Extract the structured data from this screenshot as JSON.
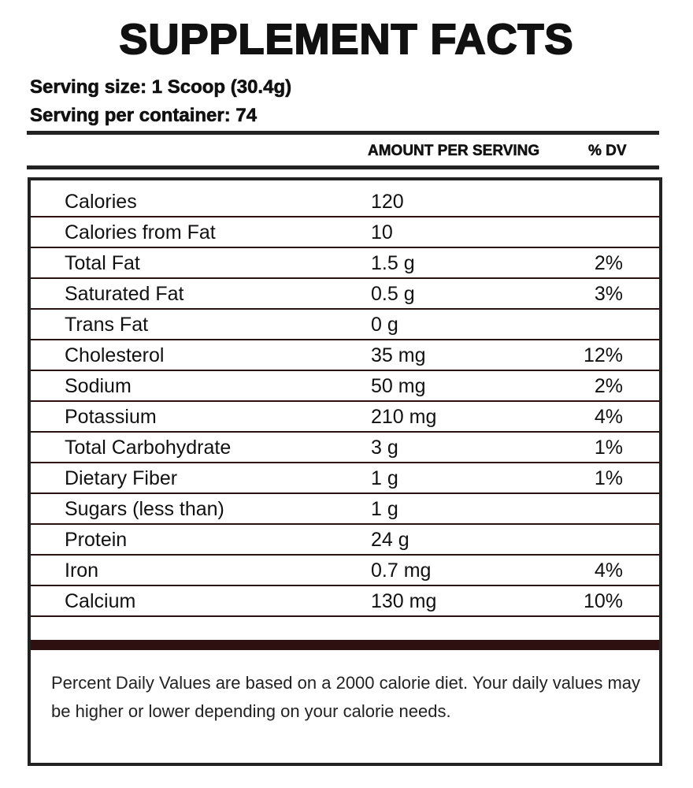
{
  "title": "SUPPLEMENT FACTS",
  "serving_size": "Serving size: 1 Scoop (30.4g)",
  "servings_per_container": "Serving per container: 74",
  "header": {
    "amount": "AMOUNT PER SERVING",
    "dv": "% DV"
  },
  "rows": [
    {
      "name": "Calories",
      "amount": "120",
      "dv": ""
    },
    {
      "name": "Calories from Fat",
      "amount": "10",
      "dv": ""
    },
    {
      "name": "Total Fat",
      "amount": "1.5 g",
      "dv": "2%"
    },
    {
      "name": "Saturated Fat",
      "amount": "0.5 g",
      "dv": "3%"
    },
    {
      "name": "Trans Fat",
      "amount": "0 g",
      "dv": ""
    },
    {
      "name": "Cholesterol",
      "amount": "35 mg",
      "dv": "12%"
    },
    {
      "name": "Sodium",
      "amount": "50 mg",
      "dv": "2%"
    },
    {
      "name": "Potassium",
      "amount": "210 mg",
      "dv": "4%"
    },
    {
      "name": "Total Carbohydrate",
      "amount": "3 g",
      "dv": "1%"
    },
    {
      "name": "Dietary Fiber",
      "amount": "1 g",
      "dv": "1%"
    },
    {
      "name": "Sugars (less than)",
      "amount": "1 g",
      "dv": ""
    },
    {
      "name": "Protein",
      "amount": "24 g",
      "dv": ""
    },
    {
      "name": "Iron",
      "amount": "0.7 mg",
      "dv": "4%"
    },
    {
      "name": "Calcium",
      "amount": "130 mg",
      "dv": "10%"
    }
  ],
  "footnote": "Percent Daily Values are based on a 2000 calorie diet. Your daily values may be higher or lower depending on your calorie needs."
}
